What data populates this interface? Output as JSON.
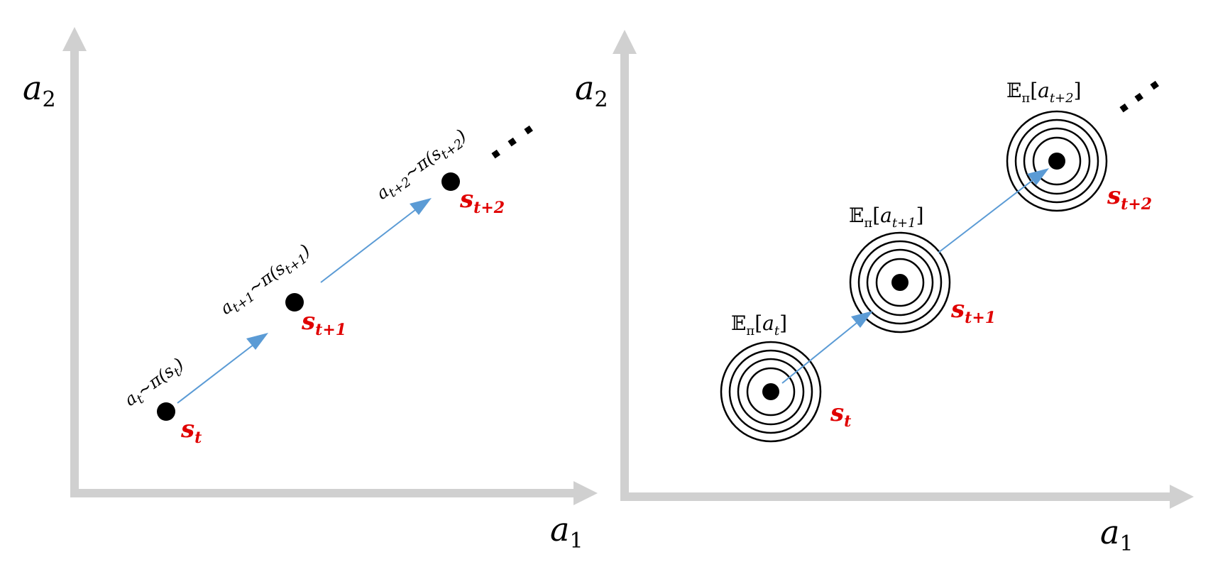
{
  "left_panel": {
    "y_axis_label": {
      "main": "a",
      "sub": "2"
    },
    "x_axis_label": {
      "main": "a",
      "sub": "1"
    },
    "states": [
      {
        "main": "s",
        "sub": "t"
      },
      {
        "main": "s",
        "sub": "t+1"
      },
      {
        "main": "s",
        "sub": "t+2"
      }
    ],
    "actions": [
      {
        "a": "a",
        "a_sub": "t",
        "op": "~π(",
        "s": "s",
        "s_sub": "t",
        "close": ")"
      },
      {
        "a": "a",
        "a_sub": "t+1",
        "op": "~π(",
        "s": "s",
        "s_sub": "t+1",
        "close": ")"
      },
      {
        "a": "a",
        "a_sub": "t+2",
        "op": "~π(",
        "s": "s",
        "s_sub": "t+2",
        "close": ")"
      }
    ]
  },
  "right_panel": {
    "y_axis_label": {
      "main": "a",
      "sub": "2"
    },
    "x_axis_label": {
      "main": "a",
      "sub": "1"
    },
    "states": [
      {
        "main": "s",
        "sub": "t"
      },
      {
        "main": "s",
        "sub": "t+1"
      },
      {
        "main": "s",
        "sub": "t+2"
      }
    ],
    "expectations": [
      {
        "E": "𝔼",
        "pi": "π",
        "open": "[",
        "a": "a",
        "a_sub": "t",
        "close": "]"
      },
      {
        "E": "𝔼",
        "pi": "π",
        "open": "[",
        "a": "a",
        "a_sub": "t+1",
        "close": "]"
      },
      {
        "E": "𝔼",
        "pi": "π",
        "open": "[",
        "a": "a",
        "a_sub": "t+2",
        "close": "]"
      }
    ]
  },
  "colors": {
    "axis": "#d0d0d0",
    "arrow": "#5b9bd5",
    "state": "#e00000",
    "point": "#000000"
  }
}
